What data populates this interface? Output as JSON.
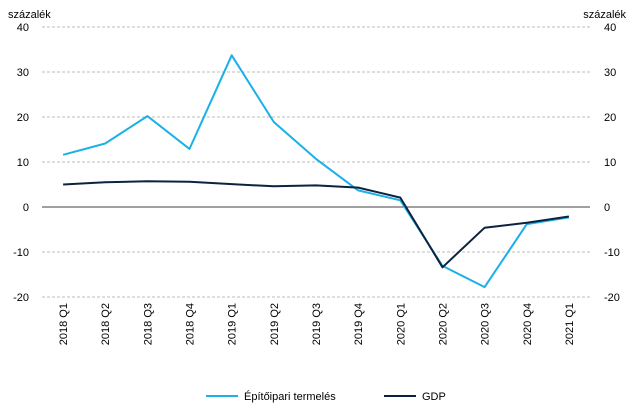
{
  "chart_data": {
    "type": "line",
    "categories": [
      "2018 Q1",
      "2018 Q2",
      "2018 Q3",
      "2018 Q4",
      "2019 Q1",
      "2019 Q2",
      "2019 Q3",
      "2019 Q4",
      "2020 Q1",
      "2020 Q2",
      "2020 Q3",
      "2020 Q4",
      "2021 Q1"
    ],
    "series": [
      {
        "name": "Építőipari termelés",
        "color": "#1ab0e8",
        "values": [
          11.6,
          14.1,
          20.2,
          12.9,
          33.7,
          18.9,
          10.7,
          3.7,
          1.5,
          -13.1,
          -17.8,
          -3.8,
          -2.3
        ]
      },
      {
        "name": "GDP",
        "color": "#0c2340",
        "values": [
          5.0,
          5.5,
          5.7,
          5.6,
          5.1,
          4.6,
          4.8,
          4.3,
          2.1,
          -13.4,
          -4.6,
          -3.5,
          -2.1
        ]
      }
    ],
    "left_unit": "százalék",
    "right_unit": "százalék",
    "ylim": [
      -20,
      40
    ],
    "yticks": [
      -20,
      -10,
      0,
      10,
      20,
      30,
      40
    ],
    "grid": true,
    "legend_position": "bottom"
  }
}
